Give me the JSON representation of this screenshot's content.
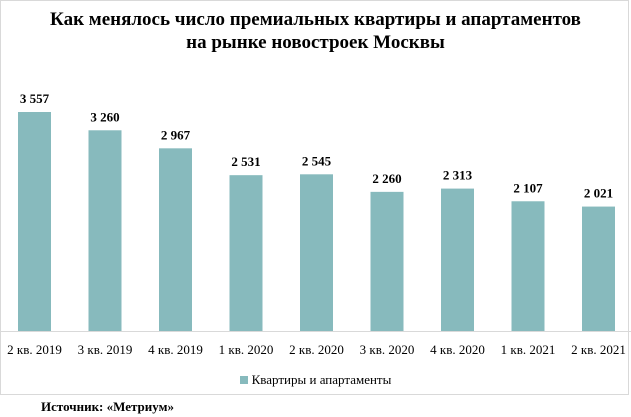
{
  "chart_data": {
    "type": "bar",
    "title_lines": [
      "Как менялось число премиальных квартиры и апартаментов",
      "на рынке новостроек  Москвы"
    ],
    "categories": [
      "2 кв. 2019",
      "3 кв. 2019",
      "4 кв. 2019",
      "1 кв. 2020",
      "2 кв. 2020",
      "3 кв. 2020",
      "4 кв. 2020",
      "1 кв. 2021",
      "2 кв. 2021"
    ],
    "series": [
      {
        "name": "Квартиры и апартаменты",
        "values": [
          3557,
          3260,
          2967,
          2531,
          2545,
          2260,
          2313,
          2107,
          2021
        ],
        "labels": [
          "3 557",
          "3 260",
          "2 967",
          "2 531",
          "2 545",
          "2 260",
          "2 313",
          "2 107",
          "2 021"
        ],
        "color": "#87babd"
      }
    ],
    "xlabel": "",
    "ylabel": "",
    "ylim": [
      0,
      3557
    ],
    "grid": false,
    "legend": "bottom-center"
  },
  "source": "Источник: «Метриум»"
}
